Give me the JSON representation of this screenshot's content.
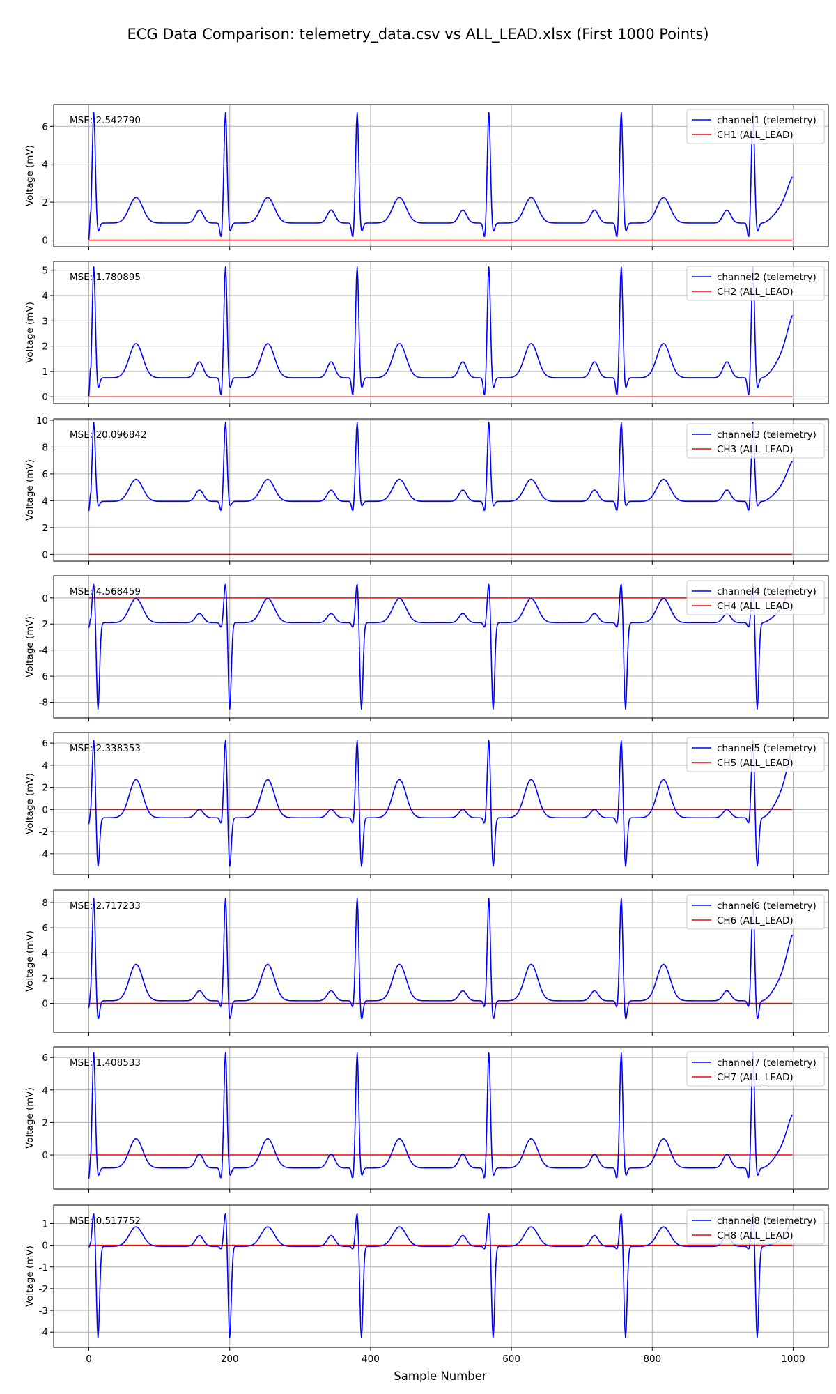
{
  "chart_data": {
    "type": "line",
    "title": "ECG Data Comparison: telemetry_data.csv vs ALL_LEAD.xlsx (First 1000 Points)",
    "xlabel": "Sample Number",
    "ylabel": "Voltage (mV)",
    "xlim": [
      -50,
      1050
    ],
    "xticks": [
      0,
      200,
      400,
      600,
      800,
      1000
    ],
    "grid": true,
    "legend_location": "top-right",
    "series_colors": {
      "telemetry": "#0000ff",
      "all_lead": "#ff0000"
    },
    "beat_r_peaks": [
      7,
      194,
      381,
      568,
      756,
      943
    ],
    "panels": [
      {
        "mse_label": "MSE: 2.542790",
        "ylim": [
          -0.35,
          7.15
        ],
        "yticks": [
          0,
          2,
          4,
          6
        ],
        "telemetry_name": "channel1 (telemetry)",
        "all_lead_name": "CH1 (ALL_LEAD)",
        "baseline": 0.9,
        "r_peak": 6.75,
        "q_min": 0.05,
        "s_min": 0.4,
        "t_peak": 2.25,
        "p_peak": 1.58,
        "start": 0.0,
        "end": 2.1,
        "all_lead_value": 0.0
      },
      {
        "mse_label": "MSE: 1.780895",
        "ylim": [
          -0.27,
          5.35
        ],
        "yticks": [
          0,
          1,
          2,
          3,
          4,
          5
        ],
        "telemetry_name": "channel2 (telemetry)",
        "all_lead_name": "CH2 (ALL_LEAD)",
        "baseline": 0.75,
        "r_peak": 5.15,
        "q_min": -0.02,
        "s_min": 0.3,
        "t_peak": 2.1,
        "p_peak": 1.38,
        "start": 0.0,
        "end": 1.98,
        "all_lead_value": 0.0
      },
      {
        "mse_label": "MSE: 20.096842",
        "ylim": [
          -0.5,
          10.1
        ],
        "yticks": [
          0,
          2,
          4,
          6,
          8,
          10
        ],
        "telemetry_name": "channel3 (telemetry)",
        "all_lead_name": "CH3 (ALL_LEAD)",
        "baseline": 3.95,
        "r_peak": 9.85,
        "q_min": 3.15,
        "s_min": 3.55,
        "t_peak": 5.6,
        "p_peak": 4.8,
        "start": 3.2,
        "end": 5.45,
        "all_lead_value": 0.0
      },
      {
        "mse_label": "MSE: 4.568459",
        "ylim": [
          -9.2,
          1.7
        ],
        "yticks": [
          -8,
          -6,
          -4,
          -2,
          0
        ],
        "telemetry_name": "channel4 (telemetry)",
        "all_lead_name": "CH4 (ALL_LEAD)",
        "baseline": -1.9,
        "r_peak": 1.2,
        "q_min": -2.3,
        "s_min": -8.6,
        "t_peak": -0.05,
        "p_peak": -1.2,
        "start": -2.3,
        "end": -0.5,
        "all_lead_value": 0.0
      },
      {
        "mse_label": "MSE: 2.338353",
        "ylim": [
          -5.9,
          6.95
        ],
        "yticks": [
          -4,
          -2,
          0,
          2,
          4,
          6
        ],
        "telemetry_name": "channel5 (telemetry)",
        "all_lead_name": "CH5 (ALL_LEAD)",
        "baseline": -0.75,
        "r_peak": 6.35,
        "q_min": -1.35,
        "s_min": -5.3,
        "t_peak": 2.7,
        "p_peak": 0.0,
        "start": -1.35,
        "end": 2.3,
        "all_lead_value": 0.0
      },
      {
        "mse_label": "MSE: 2.717233",
        "ylim": [
          -2.3,
          9.0
        ],
        "yticks": [
          0,
          2,
          4,
          6,
          8
        ],
        "telemetry_name": "channel6 (telemetry)",
        "all_lead_name": "CH6 (ALL_LEAD)",
        "baseline": 0.2,
        "r_peak": 8.4,
        "q_min": -0.4,
        "s_min": -1.4,
        "t_peak": 3.1,
        "p_peak": 1.0,
        "start": -0.4,
        "end": 2.8,
        "all_lead_value": 0.0
      },
      {
        "mse_label": "MSE: 1.408533",
        "ylim": [
          -2.1,
          6.65
        ],
        "yticks": [
          0,
          2,
          4,
          6
        ],
        "telemetry_name": "channel7 (telemetry)",
        "all_lead_name": "CH7 (ALL_LEAD)",
        "baseline": -0.8,
        "r_peak": 6.3,
        "q_min": -1.55,
        "s_min": -1.35,
        "t_peak": 1.0,
        "p_peak": 0.05,
        "start": -1.5,
        "end": 0.85,
        "all_lead_value": 0.0
      },
      {
        "mse_label": "MSE: 0.517752",
        "ylim": [
          -4.7,
          1.85
        ],
        "yticks": [
          -4,
          -3,
          -2,
          -1,
          0,
          1
        ],
        "telemetry_name": "channel8 (telemetry)",
        "all_lead_name": "CH8 (ALL_LEAD)",
        "baseline": -0.05,
        "r_peak": 1.55,
        "q_min": -0.2,
        "s_min": -4.3,
        "t_peak": 0.85,
        "p_peak": 0.45,
        "start": -0.1,
        "end": 0.3,
        "all_lead_value": 0.0
      }
    ]
  }
}
